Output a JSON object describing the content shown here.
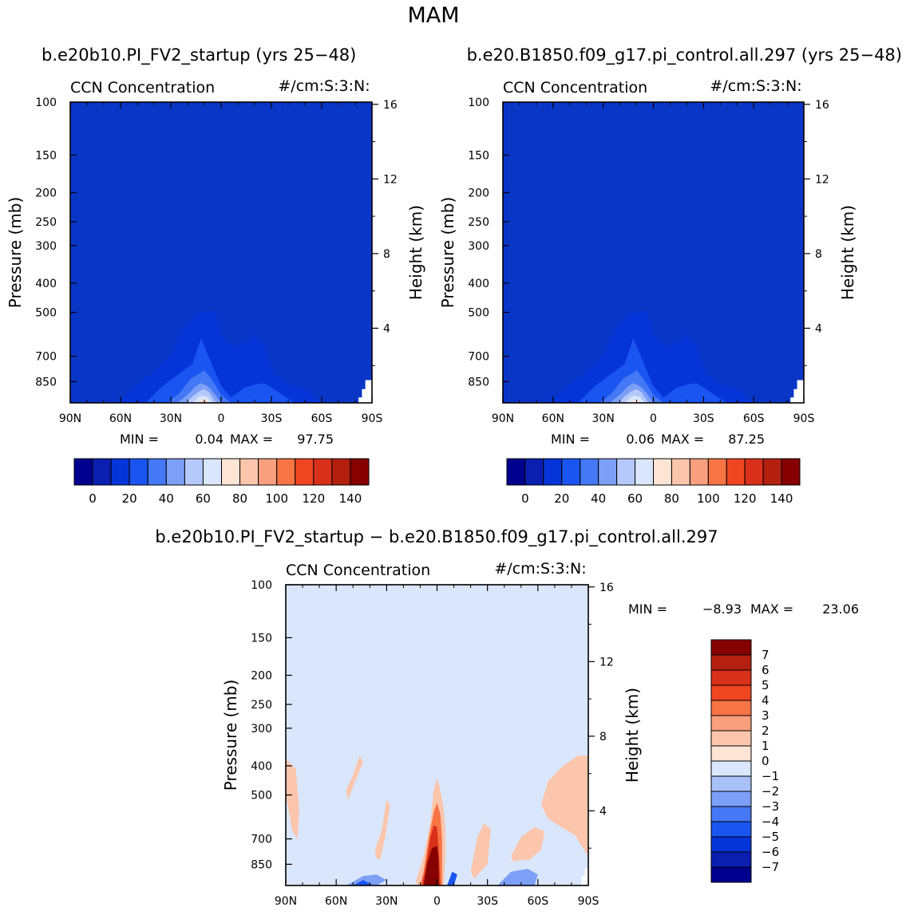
{
  "figure": {
    "title": "MAM",
    "left_case": "b.e20b10.PI_FV2_startup (yrs 25−48)",
    "right_case": "b.e20.B1850.f09_g17.pi_control.all.297 (yrs 25−48)",
    "diff_title": "b.e20b10.PI_FV2_startup − b.e20.B1850.f09_g17.pi_control.all.297"
  },
  "colors": {
    "abs_palette": [
      "#00008f",
      "#0a1fb0",
      "#0535d9",
      "#1a55f2",
      "#4478f5",
      "#7da0f6",
      "#b5c9fb",
      "#d9e6fc",
      "#fde4d4",
      "#fcc6ad",
      "#fa9f7d",
      "#f87445",
      "#ef4521",
      "#d8301a",
      "#b3200f",
      "#860000"
    ],
    "diff_palette": [
      "#00008f",
      "#0a1fb0",
      "#0535d9",
      "#1a55f2",
      "#4478f5",
      "#7da0f6",
      "#a8c1f8",
      "#d9e6fc",
      "#fde4d4",
      "#fcc6ad",
      "#fa9f7d",
      "#f87445",
      "#ef4521",
      "#d8301a",
      "#b3200f",
      "#860000"
    ],
    "background_field_abs": "#0a36c8",
    "background_field_diff": "#d9e6fc"
  },
  "chart_data": [
    {
      "type": "heatmap",
      "panel": "left",
      "variable": "CCN Concentration",
      "units": "#/cm:S:3:N:",
      "ylabel": "Pressure (mb)",
      "ylabel_right": "Height (km)",
      "x_ticks": [
        "90N",
        "60N",
        "30N",
        "0",
        "30S",
        "60S",
        "90S"
      ],
      "y_ticks": [
        "100",
        "150",
        "200",
        "250",
        "300",
        "400",
        "500",
        "700",
        "850"
      ],
      "y_tick_values": [
        100,
        150,
        200,
        250,
        300,
        400,
        500,
        700,
        850
      ],
      "height_ticks": [
        "16",
        "12",
        "8",
        "4"
      ],
      "height_tick_values": [
        16,
        12,
        8,
        4
      ],
      "ylim": [
        100,
        1000
      ],
      "xlim": [
        90,
        -90
      ],
      "min_label": "MIN =",
      "min_value": "0.04",
      "max_label": "MAX =",
      "max_value": "97.75",
      "contour_profiles": [
        {
          "level": 10,
          "lat": [
            62,
            50,
            38,
            30,
            22,
            14,
            10,
            4,
            0,
            -6,
            -14,
            -20,
            -26,
            -32,
            -40,
            -50,
            -60
          ],
          "p": [
            1000,
            870,
            770,
            690,
            560,
            505,
            500,
            495,
            590,
            650,
            630,
            595,
            650,
            810,
            870,
            900,
            1000
          ]
        },
        {
          "level": 20,
          "lat": [
            45,
            35,
            25,
            17,
            12,
            8,
            0,
            -6,
            -14,
            -20,
            -26,
            -34,
            -44
          ],
          "p": [
            1000,
            880,
            800,
            740,
            610,
            690,
            880,
            960,
            890,
            870,
            860,
            920,
            1000
          ]
        },
        {
          "level": 30,
          "lat": [
            32,
            25,
            18,
            13,
            10,
            6,
            0,
            -6,
            -12
          ],
          "p": [
            1000,
            930,
            830,
            800,
            780,
            830,
            940,
            1000,
            1000
          ]
        },
        {
          "level": 40,
          "lat": [
            26,
            20,
            15,
            12,
            8,
            4,
            0
          ],
          "p": [
            1000,
            940,
            880,
            860,
            880,
            930,
            1000
          ]
        },
        {
          "level": 50,
          "lat": [
            21,
            17,
            13,
            10,
            7,
            3
          ],
          "p": [
            1000,
            950,
            915,
            900,
            925,
            1000
          ]
        },
        {
          "level": 60,
          "lat": [
            17,
            14,
            11,
            8,
            5
          ],
          "p": [
            1000,
            960,
            945,
            960,
            1000
          ]
        },
        {
          "level": 70,
          "lat": [
            13,
            11,
            9,
            7
          ],
          "p": [
            1000,
            970,
            972,
            1000
          ]
        },
        {
          "level": 80,
          "lat": [
            12,
            10,
            8
          ],
          "p": [
            1000,
            980,
            1000
          ]
        }
      ],
      "colorbar_labels": [
        "0",
        "20",
        "40",
        "60",
        "80",
        "100",
        "120",
        "140"
      ]
    },
    {
      "type": "heatmap",
      "panel": "right",
      "variable": "CCN Concentration",
      "units": "#/cm:S:3:N:",
      "ylabel": "Pressure (mb)",
      "ylabel_right": "Height (km)",
      "x_ticks": [
        "90N",
        "60N",
        "30N",
        "0",
        "30S",
        "60S",
        "90S"
      ],
      "y_ticks": [
        "100",
        "150",
        "200",
        "250",
        "300",
        "400",
        "500",
        "700",
        "850"
      ],
      "y_tick_values": [
        100,
        150,
        200,
        250,
        300,
        400,
        500,
        700,
        850
      ],
      "height_ticks": [
        "16",
        "12",
        "8",
        "4"
      ],
      "height_tick_values": [
        16,
        12,
        8,
        4
      ],
      "ylim": [
        100,
        1000
      ],
      "xlim": [
        90,
        -90
      ],
      "min_label": "MIN =",
      "min_value": "0.06",
      "max_label": "MAX =",
      "max_value": "87.25",
      "contour_profiles": [
        {
          "level": 10,
          "lat": [
            62,
            50,
            38,
            30,
            22,
            14,
            10,
            4,
            0,
            -6,
            -14,
            -20,
            -26,
            -32,
            -40,
            -50,
            -60
          ],
          "p": [
            1000,
            870,
            770,
            690,
            560,
            505,
            500,
            495,
            590,
            650,
            630,
            595,
            650,
            810,
            870,
            900,
            1000
          ]
        },
        {
          "level": 20,
          "lat": [
            45,
            35,
            25,
            17,
            12,
            8,
            0,
            -6,
            -14,
            -20,
            -26,
            -34,
            -44
          ],
          "p": [
            1000,
            880,
            800,
            740,
            610,
            690,
            880,
            960,
            890,
            870,
            860,
            920,
            1000
          ]
        },
        {
          "level": 30,
          "lat": [
            32,
            25,
            18,
            13,
            10,
            6,
            0,
            -6,
            -12
          ],
          "p": [
            1000,
            930,
            830,
            800,
            780,
            830,
            940,
            1000,
            1000
          ]
        },
        {
          "level": 40,
          "lat": [
            26,
            20,
            15,
            12,
            8,
            4,
            0
          ],
          "p": [
            1000,
            940,
            880,
            860,
            880,
            930,
            1000
          ]
        },
        {
          "level": 50,
          "lat": [
            21,
            17,
            13,
            10,
            7,
            3
          ],
          "p": [
            1000,
            950,
            915,
            900,
            925,
            1000
          ]
        },
        {
          "level": 60,
          "lat": [
            17,
            14,
            11,
            8,
            5
          ],
          "p": [
            1000,
            960,
            945,
            960,
            1000
          ]
        },
        {
          "level": 70,
          "lat": [
            13,
            11,
            9,
            7
          ],
          "p": [
            1000,
            975,
            980,
            1000
          ]
        }
      ],
      "colorbar_labels": [
        "0",
        "20",
        "40",
        "60",
        "80",
        "100",
        "120",
        "140"
      ]
    },
    {
      "type": "heatmap",
      "panel": "difference",
      "variable": "CCN Concentration",
      "units": "#/cm:S:3:N:",
      "ylabel": "Pressure (mb)",
      "ylabel_right": "Height (km)",
      "x_ticks": [
        "90N",
        "60N",
        "30N",
        "0",
        "30S",
        "60S",
        "90S"
      ],
      "y_ticks": [
        "100",
        "150",
        "200",
        "250",
        "300",
        "400",
        "500",
        "700",
        "850"
      ],
      "y_tick_values": [
        100,
        150,
        200,
        250,
        300,
        400,
        500,
        700,
        850
      ],
      "height_ticks": [
        "16",
        "12",
        "8",
        "4"
      ],
      "height_tick_values": [
        16,
        12,
        8,
        4
      ],
      "ylim": [
        100,
        1000
      ],
      "xlim": [
        90,
        -90
      ],
      "min_label": "MIN =",
      "min_value": "−8.93",
      "max_label": "MAX =",
      "max_value": "23.06",
      "features": [
        {
          "sign": "positive",
          "level": 1,
          "lat": [
            90,
            84,
            82,
            83,
            86,
            90
          ],
          "p": [
            380,
            410,
            560,
            700,
            660,
            500
          ]
        },
        {
          "sign": "positive",
          "level": 1,
          "lat": [
            54,
            50,
            46,
            44,
            48,
            53
          ],
          "p": [
            480,
            430,
            370,
            390,
            440,
            520
          ]
        },
        {
          "sign": "positive",
          "level": 1,
          "lat": [
            37,
            33,
            30,
            28,
            31,
            35
          ],
          "p": [
            760,
            660,
            520,
            540,
            700,
            880
          ]
        },
        {
          "sign": "positive",
          "level": 1,
          "lat": [
            18,
            17,
            16,
            17,
            19
          ],
          "p": [
            1000,
            880,
            700,
            860,
            1000
          ]
        },
        {
          "sign": "positive",
          "level": 1,
          "lat": [
            16,
            12,
            8,
            4,
            2,
            0,
            -2,
            -4,
            -5,
            -5,
            -4,
            -2,
            0,
            4,
            8,
            12,
            16
          ],
          "p": [
            1000,
            950,
            800,
            620,
            480,
            440,
            480,
            560,
            650,
            800,
            1000,
            1000,
            1000,
            1000,
            1000,
            1000,
            1000
          ]
        },
        {
          "sign": "positive",
          "level": 1,
          "lat": [
            -20,
            -24,
            -28,
            -32,
            -30,
            -22
          ],
          "p": [
            900,
            690,
            620,
            650,
            850,
            950
          ]
        },
        {
          "sign": "positive",
          "level": 1,
          "lat": [
            -44,
            -50,
            -58,
            -64,
            -62,
            -54,
            -46
          ],
          "p": [
            800,
            690,
            640,
            660,
            760,
            830,
            850
          ]
        },
        {
          "sign": "positive",
          "level": 1,
          "lat": [
            -90,
            -84,
            -75,
            -66,
            -62,
            -66,
            -74,
            -82,
            -90
          ],
          "p": [
            370,
            370,
            400,
            450,
            540,
            600,
            640,
            680,
            800
          ]
        },
        {
          "sign": "positive",
          "level": 3,
          "lat": [
            10,
            8,
            5,
            2,
            0,
            -2,
            -3,
            -3,
            -2,
            0,
            3,
            6,
            10
          ],
          "p": [
            1000,
            900,
            700,
            570,
            530,
            580,
            700,
            1000,
            1000,
            1000,
            1000,
            1000,
            1000
          ]
        },
        {
          "sign": "positive",
          "level": 5,
          "lat": [
            9,
            7,
            4,
            2,
            0,
            -1,
            -2,
            -1,
            2,
            5,
            9
          ],
          "p": [
            1000,
            880,
            690,
            630,
            640,
            760,
            1000,
            1000,
            1000,
            1000,
            1000
          ]
        },
        {
          "sign": "positive",
          "level": 7,
          "lat": [
            8,
            6,
            3,
            0,
            -1,
            -1,
            3,
            8
          ],
          "p": [
            1000,
            850,
            750,
            740,
            820,
            1000,
            1000,
            1000
          ]
        },
        {
          "sign": "negative",
          "level": -1,
          "lat": [
            70,
            60,
            50,
            40,
            30,
            22,
            14,
            12,
            18,
            30,
            44,
            60,
            70
          ],
          "p": [
            1000,
            850,
            780,
            800,
            830,
            900,
            860,
            1000,
            1000,
            1000,
            1000,
            1000,
            1000
          ]
        },
        {
          "sign": "negative",
          "level": -1,
          "lat": [
            24,
            22,
            20,
            21,
            23
          ],
          "p": [
            700,
            600,
            560,
            640,
            720
          ]
        },
        {
          "sign": "negative",
          "level": -1,
          "lat": [
            -6,
            -10,
            -16,
            -20,
            -16,
            -10,
            -6
          ],
          "p": [
            1000,
            780,
            740,
            900,
            1000,
            1000,
            1000
          ]
        },
        {
          "sign": "negative",
          "level": -1,
          "lat": [
            -30,
            -38,
            -50,
            -62,
            -72,
            -74,
            -64,
            -50,
            -36,
            -30
          ],
          "p": [
            1000,
            860,
            820,
            840,
            900,
            1000,
            1000,
            1000,
            1000,
            1000
          ]
        },
        {
          "sign": "negative",
          "level": -3,
          "lat": [
            -36,
            -44,
            -54,
            -60,
            -58,
            -48,
            -38
          ],
          "p": [
            1000,
            900,
            880,
            920,
            1000,
            1000,
            1000
          ]
        },
        {
          "sign": "negative",
          "level": -3,
          "lat": [
            54,
            44,
            36,
            30,
            36,
            46,
            54
          ],
          "p": [
            1000,
            930,
            920,
            960,
            1000,
            1000,
            1000
          ]
        },
        {
          "sign": "negative",
          "level": -5,
          "lat": [
            -6,
            -9,
            -12,
            -10,
            -6
          ],
          "p": [
            1000,
            900,
            920,
            1000,
            1000
          ]
        },
        {
          "sign": "negative",
          "level": -5,
          "lat": [
            50,
            44,
            38,
            42,
            50
          ],
          "p": [
            1000,
            960,
            1000,
            1000,
            1000
          ]
        }
      ],
      "colorbar_labels": [
        "7",
        "6",
        "5",
        "4",
        "3",
        "2",
        "1",
        "0",
        "−1",
        "−2",
        "−3",
        "−4",
        "−5",
        "−6",
        "−7"
      ]
    }
  ]
}
